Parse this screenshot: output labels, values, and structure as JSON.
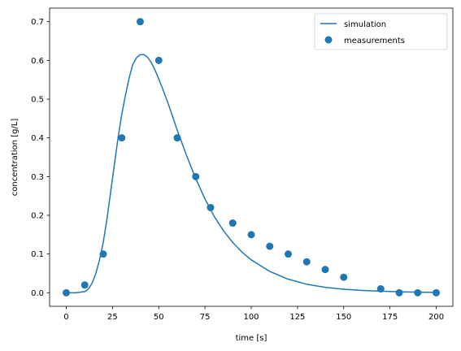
{
  "chart_data": {
    "type": "line",
    "xlabel": "time [s]",
    "ylabel": "concentration [g/L]",
    "xlim": [
      -9,
      209
    ],
    "ylim": [
      -0.035,
      0.735
    ],
    "xticks": [
      0,
      25,
      50,
      75,
      100,
      125,
      150,
      175,
      200
    ],
    "yticks": [
      0.0,
      0.1,
      0.2,
      0.3,
      0.4,
      0.5,
      0.6,
      0.7
    ],
    "legend_position": "top-right",
    "grid": false,
    "color": "#1f77b4",
    "series": [
      {
        "name": "simulation",
        "kind": "line",
        "x": [
          0,
          5,
          10,
          12,
          14,
          16,
          18,
          20,
          22,
          24,
          26,
          28,
          30,
          32,
          34,
          36,
          38,
          40,
          42,
          44,
          46,
          48,
          50,
          52,
          55,
          60,
          65,
          70,
          75,
          80,
          85,
          90,
          95,
          100,
          110,
          120,
          130,
          140,
          150,
          160,
          170,
          180,
          190,
          200
        ],
        "y": [
          0.0,
          0.0,
          0.003,
          0.01,
          0.025,
          0.05,
          0.085,
          0.13,
          0.19,
          0.26,
          0.33,
          0.4,
          0.46,
          0.51,
          0.555,
          0.59,
          0.607,
          0.615,
          0.615,
          0.608,
          0.594,
          0.575,
          0.552,
          0.528,
          0.49,
          0.42,
          0.355,
          0.295,
          0.242,
          0.197,
          0.16,
          0.13,
          0.105,
          0.085,
          0.055,
          0.035,
          0.022,
          0.014,
          0.009,
          0.006,
          0.004,
          0.0025,
          0.0015,
          0.001
        ]
      },
      {
        "name": "measurements",
        "kind": "scatter",
        "x": [
          0,
          10,
          20,
          30,
          40,
          50,
          60,
          70,
          78,
          90,
          100,
          110,
          120,
          130,
          140,
          150,
          170,
          180,
          190,
          200
        ],
        "y": [
          0.0,
          0.02,
          0.1,
          0.4,
          0.7,
          0.6,
          0.4,
          0.3,
          0.22,
          0.18,
          0.15,
          0.12,
          0.1,
          0.08,
          0.06,
          0.04,
          0.01,
          0.0,
          0.0,
          0.0
        ]
      }
    ]
  }
}
